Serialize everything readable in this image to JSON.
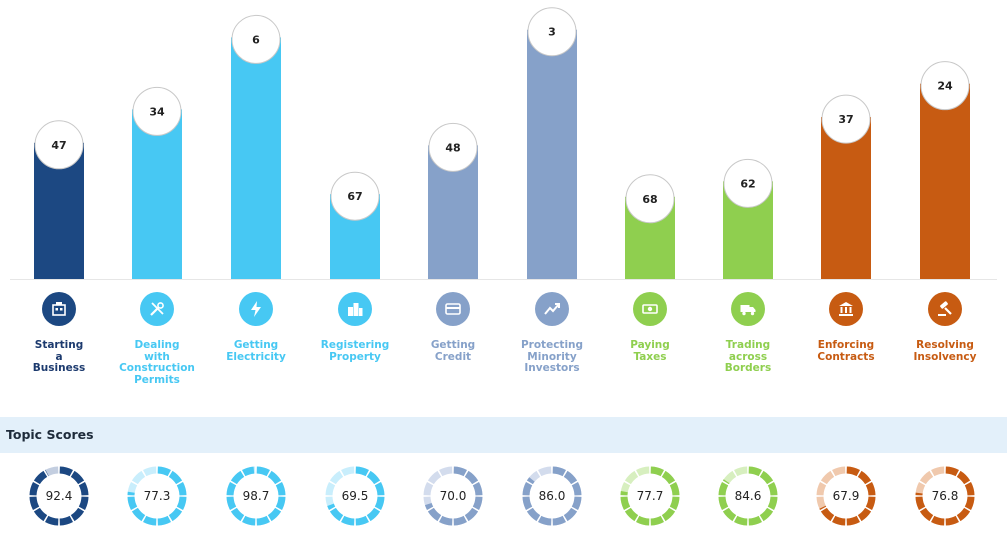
{
  "chart_data": {
    "type": "bar",
    "categories": [
      "Starting\na\nBusiness",
      "Dealing\nwith\nConstruction\nPermits",
      "Getting\nElectricity",
      "Registering\nProperty",
      "Getting\nCredit",
      "Protecting\nMinority\nInvestors",
      "Paying\nTaxes",
      "Trading\nacross\nBorders",
      "Enforcing\nContracts",
      "Resolving\nInsolvency"
    ],
    "values": [
      47,
      34,
      6,
      67,
      48,
      3,
      68,
      62,
      37,
      24
    ],
    "ylim": [
      0,
      100
    ],
    "ylabel": "",
    "xlabel": "",
    "grid": false,
    "colors": [
      "#1c4882",
      "#47c8f3",
      "#47c8f3",
      "#47c8f3",
      "#86a1c9",
      "#86a1c9",
      "#8fcf4f",
      "#8fcf4f",
      "#c75b12",
      "#c75b12"
    ],
    "label_colors": [
      "#1c3a6e",
      "#47c8f3",
      "#47c8f3",
      "#47c8f3",
      "#86a1c9",
      "#86a1c9",
      "#8fcf4f",
      "#8fcf4f",
      "#c75b12",
      "#c75b12"
    ],
    "icons": [
      "building-icon",
      "tools-icon",
      "lightning-icon",
      "city-icon",
      "credit-card-icon",
      "trend-up-icon",
      "money-icon",
      "truck-icon",
      "courthouse-icon",
      "gavel-icon"
    ]
  },
  "topic_scores": {
    "title": "Topic Scores",
    "scores": [
      92.4,
      77.3,
      98.7,
      69.5,
      70.0,
      86.0,
      77.7,
      84.6,
      67.9,
      76.8
    ],
    "score_labels": [
      "92.4",
      "77.3",
      "98.7",
      "69.5",
      "70.0",
      "86.0",
      "77.7",
      "84.6",
      "67.9",
      "76.8"
    ],
    "light_colors": [
      "#c3cee0",
      "#c9eefc",
      "#c9eefc",
      "#c9eefc",
      "#d3dced",
      "#d3dced",
      "#d7efbf",
      "#d7efbf",
      "#f0c9ad",
      "#f0c9ad"
    ]
  }
}
